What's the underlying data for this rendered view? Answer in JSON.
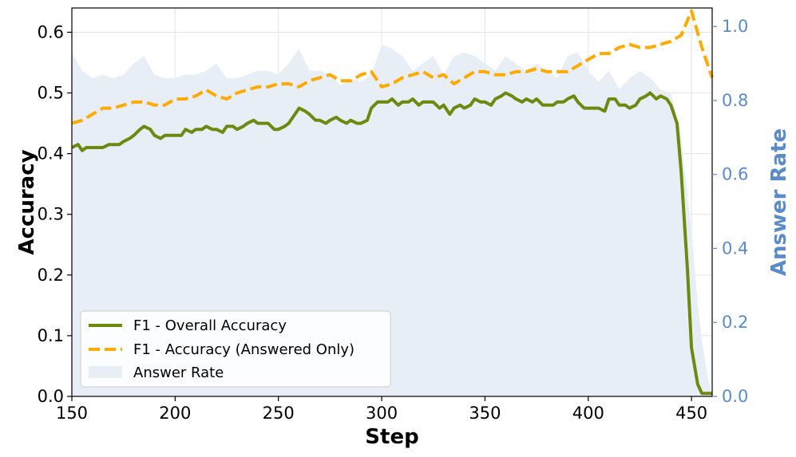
{
  "chart_data": {
    "type": "line",
    "title": "",
    "xlabel": "Step",
    "ylabel": "Accuracy",
    "y2label": "Answer Rate",
    "xlim": [
      150,
      460
    ],
    "ylim": [
      0,
      0.64
    ],
    "y2lim": [
      0,
      1.05
    ],
    "xticks": [
      "150",
      "200",
      "250",
      "300",
      "350",
      "400",
      "450"
    ],
    "yticks": [
      "0.0",
      "0.1",
      "0.2",
      "0.3",
      "0.4",
      "0.5",
      "0.6"
    ],
    "y2ticks": [
      "0.0",
      "0.2",
      "0.4",
      "0.6",
      "0.8",
      "1.0"
    ],
    "grid": true,
    "legend_position": "lower-left",
    "colors": {
      "overall": "#6b8a0f",
      "answered": "#ffaa00",
      "answer_rate_fill": "#e8eef6",
      "right_axis": "#5b8cc8"
    },
    "series": [
      {
        "name": "F1 - Overall Accuracy",
        "axis": "left",
        "style": "solid",
        "x": [
          150,
          153,
          155,
          157,
          160,
          163,
          165,
          168,
          170,
          173,
          175,
          178,
          180,
          183,
          185,
          188,
          190,
          193,
          195,
          198,
          200,
          203,
          205,
          208,
          210,
          213,
          215,
          218,
          220,
          223,
          225,
          228,
          230,
          233,
          235,
          238,
          240,
          243,
          245,
          248,
          250,
          253,
          255,
          258,
          260,
          263,
          265,
          268,
          270,
          273,
          275,
          278,
          280,
          283,
          285,
          288,
          290,
          293,
          295,
          298,
          300,
          303,
          305,
          308,
          310,
          313,
          315,
          318,
          320,
          323,
          325,
          328,
          330,
          333,
          335,
          338,
          340,
          343,
          345,
          348,
          350,
          353,
          355,
          358,
          360,
          363,
          365,
          368,
          370,
          373,
          375,
          378,
          380,
          383,
          385,
          388,
          390,
          393,
          395,
          398,
          400,
          403,
          405,
          408,
          410,
          413,
          415,
          418,
          420,
          423,
          425,
          428,
          430,
          433,
          435,
          438,
          440,
          443,
          445,
          448,
          450,
          453,
          455,
          458,
          460
        ],
        "values": [
          0.41,
          0.415,
          0.405,
          0.41,
          0.41,
          0.41,
          0.41,
          0.415,
          0.415,
          0.415,
          0.42,
          0.425,
          0.43,
          0.44,
          0.445,
          0.44,
          0.43,
          0.425,
          0.43,
          0.43,
          0.43,
          0.43,
          0.44,
          0.435,
          0.44,
          0.44,
          0.445,
          0.44,
          0.44,
          0.435,
          0.445,
          0.445,
          0.44,
          0.445,
          0.45,
          0.455,
          0.45,
          0.45,
          0.45,
          0.44,
          0.44,
          0.445,
          0.45,
          0.465,
          0.475,
          0.47,
          0.465,
          0.455,
          0.455,
          0.45,
          0.455,
          0.46,
          0.455,
          0.45,
          0.455,
          0.45,
          0.45,
          0.455,
          0.475,
          0.485,
          0.485,
          0.485,
          0.49,
          0.48,
          0.485,
          0.485,
          0.49,
          0.48,
          0.485,
          0.485,
          0.485,
          0.475,
          0.48,
          0.465,
          0.475,
          0.48,
          0.475,
          0.48,
          0.49,
          0.485,
          0.485,
          0.48,
          0.49,
          0.495,
          0.5,
          0.495,
          0.49,
          0.485,
          0.49,
          0.485,
          0.49,
          0.48,
          0.48,
          0.48,
          0.485,
          0.485,
          0.49,
          0.495,
          0.485,
          0.475,
          0.475,
          0.475,
          0.475,
          0.47,
          0.49,
          0.49,
          0.48,
          0.48,
          0.475,
          0.48,
          0.49,
          0.495,
          0.5,
          0.49,
          0.495,
          0.49,
          0.48,
          0.45,
          0.37,
          0.21,
          0.08,
          0.02,
          0.005,
          0.005,
          0.005
        ]
      },
      {
        "name": "F1 - Accuracy (Answered Only)",
        "axis": "left",
        "style": "dashed",
        "x": [
          150,
          155,
          160,
          165,
          170,
          175,
          180,
          185,
          190,
          195,
          200,
          205,
          210,
          215,
          220,
          225,
          230,
          235,
          240,
          245,
          250,
          255,
          260,
          265,
          270,
          275,
          280,
          285,
          290,
          295,
          300,
          305,
          310,
          315,
          320,
          325,
          330,
          335,
          340,
          345,
          350,
          355,
          360,
          365,
          370,
          375,
          380,
          385,
          390,
          395,
          400,
          405,
          410,
          415,
          420,
          425,
          430,
          435,
          440,
          445,
          450,
          455,
          460
        ],
        "values": [
          0.45,
          0.455,
          0.465,
          0.475,
          0.475,
          0.48,
          0.485,
          0.485,
          0.48,
          0.48,
          0.49,
          0.49,
          0.495,
          0.505,
          0.495,
          0.49,
          0.5,
          0.505,
          0.51,
          0.51,
          0.515,
          0.515,
          0.51,
          0.52,
          0.525,
          0.53,
          0.52,
          0.52,
          0.53,
          0.535,
          0.51,
          0.515,
          0.525,
          0.53,
          0.535,
          0.525,
          0.53,
          0.515,
          0.525,
          0.535,
          0.535,
          0.53,
          0.53,
          0.535,
          0.535,
          0.54,
          0.535,
          0.535,
          0.535,
          0.545,
          0.555,
          0.565,
          0.565,
          0.575,
          0.58,
          0.575,
          0.575,
          0.58,
          0.585,
          0.595,
          0.635,
          0.575,
          0.525
        ]
      },
      {
        "name": "Answer Rate",
        "axis": "right",
        "style": "filled-area",
        "x": [
          150,
          155,
          160,
          165,
          170,
          175,
          180,
          185,
          190,
          195,
          200,
          205,
          210,
          215,
          220,
          225,
          230,
          235,
          240,
          245,
          250,
          255,
          260,
          265,
          270,
          275,
          280,
          285,
          290,
          295,
          300,
          305,
          310,
          315,
          320,
          325,
          330,
          335,
          340,
          345,
          350,
          355,
          360,
          365,
          370,
          375,
          380,
          385,
          390,
          395,
          400,
          405,
          410,
          415,
          420,
          425,
          430,
          435,
          440,
          445,
          450,
          453,
          455,
          458,
          460
        ],
        "values": [
          0.93,
          0.88,
          0.86,
          0.87,
          0.86,
          0.87,
          0.9,
          0.92,
          0.87,
          0.86,
          0.86,
          0.87,
          0.87,
          0.88,
          0.9,
          0.86,
          0.86,
          0.87,
          0.88,
          0.88,
          0.87,
          0.9,
          0.94,
          0.88,
          0.88,
          0.87,
          0.84,
          0.86,
          0.85,
          0.87,
          0.95,
          0.94,
          0.92,
          0.88,
          0.9,
          0.92,
          0.87,
          0.92,
          0.93,
          0.92,
          0.9,
          0.88,
          0.92,
          0.9,
          0.88,
          0.9,
          0.88,
          0.86,
          0.92,
          0.93,
          0.88,
          0.85,
          0.88,
          0.83,
          0.86,
          0.88,
          0.86,
          0.83,
          0.82,
          0.7,
          0.45,
          0.25,
          0.15,
          0.05,
          0.0
        ]
      }
    ]
  }
}
